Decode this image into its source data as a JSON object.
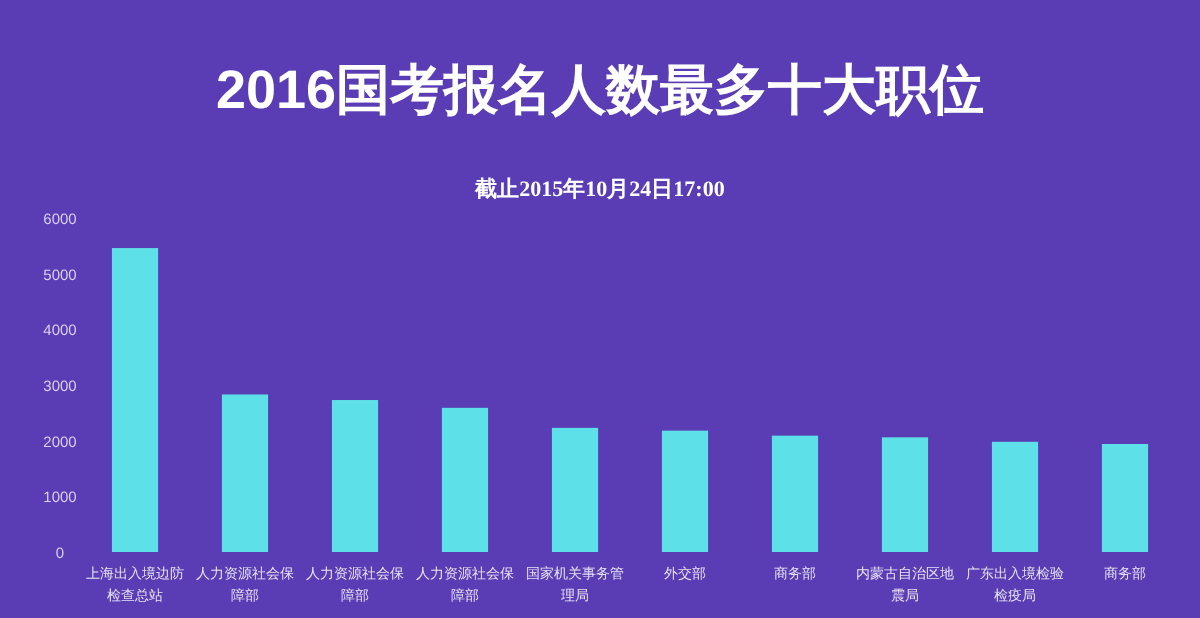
{
  "chart_data": {
    "type": "bar",
    "title": "2016国考报名人数最多十大职位",
    "subtitle": "截止2015年10月24日17:00",
    "categories": [
      "上海出入境边防检查总站",
      "人力资源社会保障部",
      "人力资源社会保障部",
      "人力资源社会保障部",
      "国家机关事务管理局",
      "外交部",
      "商务部",
      "内蒙古自治区地震局",
      "广东出入境检验检疫局",
      "商务部"
    ],
    "values": [
      5460,
      2830,
      2730,
      2590,
      2230,
      2180,
      2090,
      2060,
      1980,
      1940
    ],
    "color": "#5ee0e8",
    "ylim": [
      0,
      6000
    ],
    "yticks": [
      0,
      1000,
      2000,
      3000,
      4000,
      5000,
      6000
    ],
    "grid": false
  }
}
